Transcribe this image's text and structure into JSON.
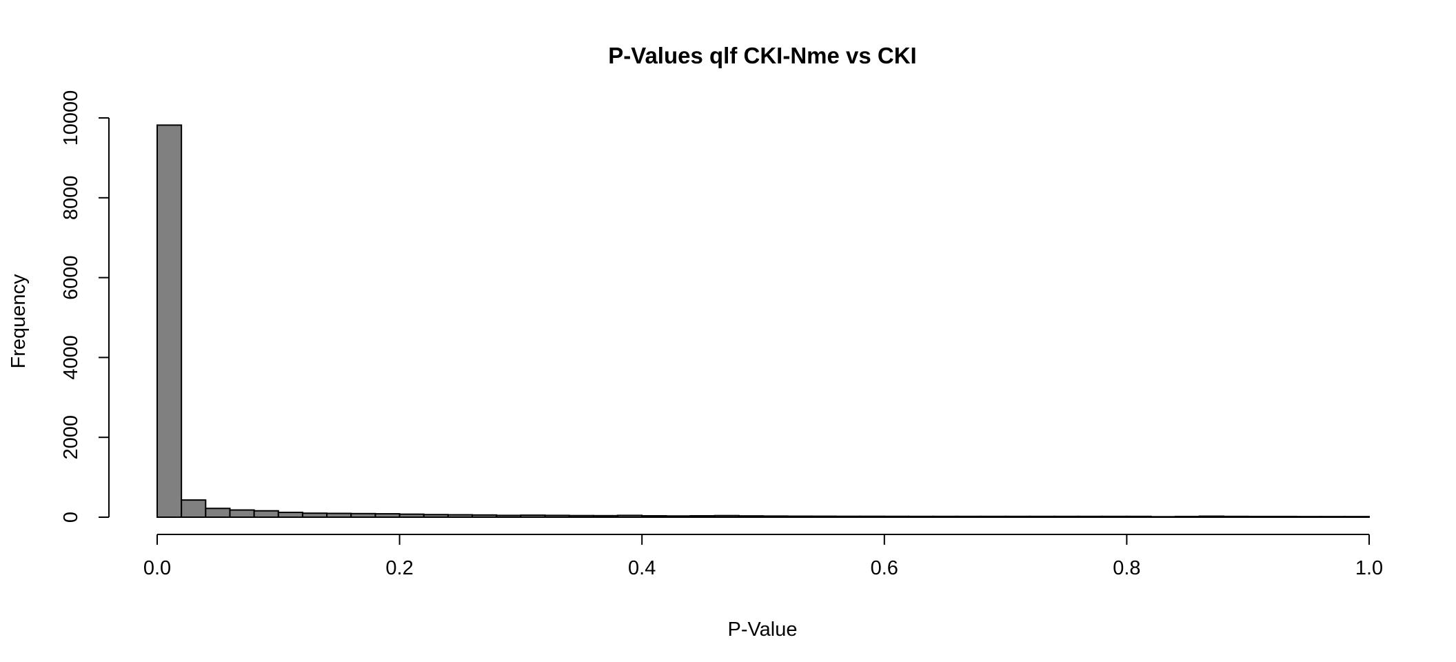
{
  "chart_data": {
    "type": "bar",
    "title": "P-Values qlf CKI-Nme vs CKI",
    "xlabel": "P-Value",
    "ylabel": "Frequency",
    "xlim": [
      0,
      1
    ],
    "ylim": [
      0,
      10000
    ],
    "x_ticks": [
      0,
      0.2,
      0.4,
      0.6,
      0.8,
      1
    ],
    "x_tick_labels": [
      "0.0",
      "0.2",
      "0.4",
      "0.6",
      "0.8",
      "1.0"
    ],
    "y_ticks": [
      0,
      2000,
      4000,
      6000,
      8000,
      10000
    ],
    "y_tick_labels": [
      "0",
      "2000",
      "4000",
      "6000",
      "8000",
      "10000"
    ],
    "bin_width": 0.02,
    "bin_edges_start": 0,
    "values": [
      9820,
      430,
      220,
      180,
      160,
      120,
      100,
      95,
      90,
      85,
      75,
      65,
      60,
      55,
      45,
      50,
      45,
      40,
      38,
      45,
      35,
      30,
      35,
      40,
      32,
      28,
      25,
      24,
      22,
      22,
      21,
      20,
      20,
      20,
      20,
      20,
      20,
      20,
      20,
      20,
      20,
      12,
      18,
      25,
      20,
      18,
      18,
      15,
      15,
      15
    ],
    "colors": {
      "bar_fill": "#808080",
      "bar_stroke": "#000000"
    }
  }
}
